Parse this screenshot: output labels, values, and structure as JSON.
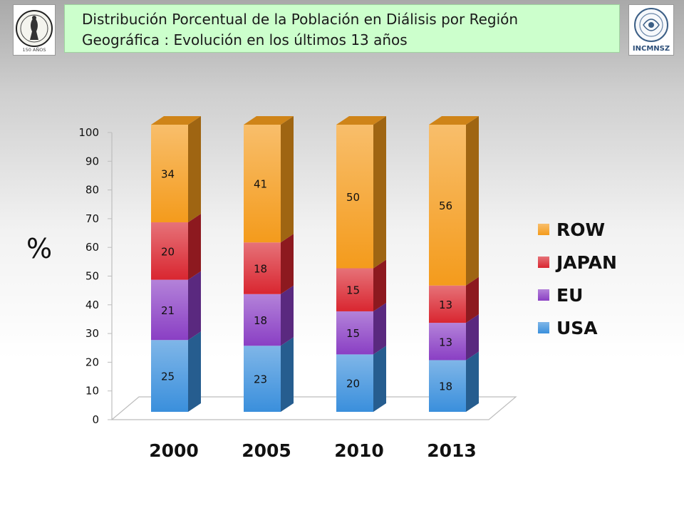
{
  "header": {
    "title_line1": "Distribución Porcentual de la Población en Diálisis por Región",
    "title_line2": "Geográfica : Evolución en los últimos 13 años",
    "logo_left_text": "150 AÑOS",
    "logo_right_text": "INCMNSZ"
  },
  "chart_data": {
    "type": "bar",
    "stacked": true,
    "three_d": true,
    "title": "Distribución Porcentual de la Población en Diálisis por Región Geográfica : Evolución en los últimos 13 años",
    "ylabel": "%",
    "xlabel": "",
    "ylim": [
      0,
      100
    ],
    "yticks": [
      0,
      10,
      20,
      30,
      40,
      50,
      60,
      70,
      80,
      90,
      100
    ],
    "categories": [
      "2000",
      "2005",
      "2010",
      "2013"
    ],
    "series": [
      {
        "name": "USA",
        "values": [
          25,
          23,
          20,
          18
        ],
        "color": "#3a8fdc"
      },
      {
        "name": "EU",
        "values": [
          21,
          18,
          15,
          13
        ],
        "color": "#8a3fc4"
      },
      {
        "name": "JAPAN",
        "values": [
          20,
          18,
          15,
          13
        ],
        "color": "#d92630"
      },
      {
        "name": "ROW",
        "values": [
          34,
          41,
          50,
          56
        ],
        "color": "#f49b1c"
      }
    ],
    "legend": {
      "placement": "right",
      "order": [
        "ROW",
        "JAPAN",
        "EU",
        "USA"
      ]
    },
    "grid": false
  }
}
